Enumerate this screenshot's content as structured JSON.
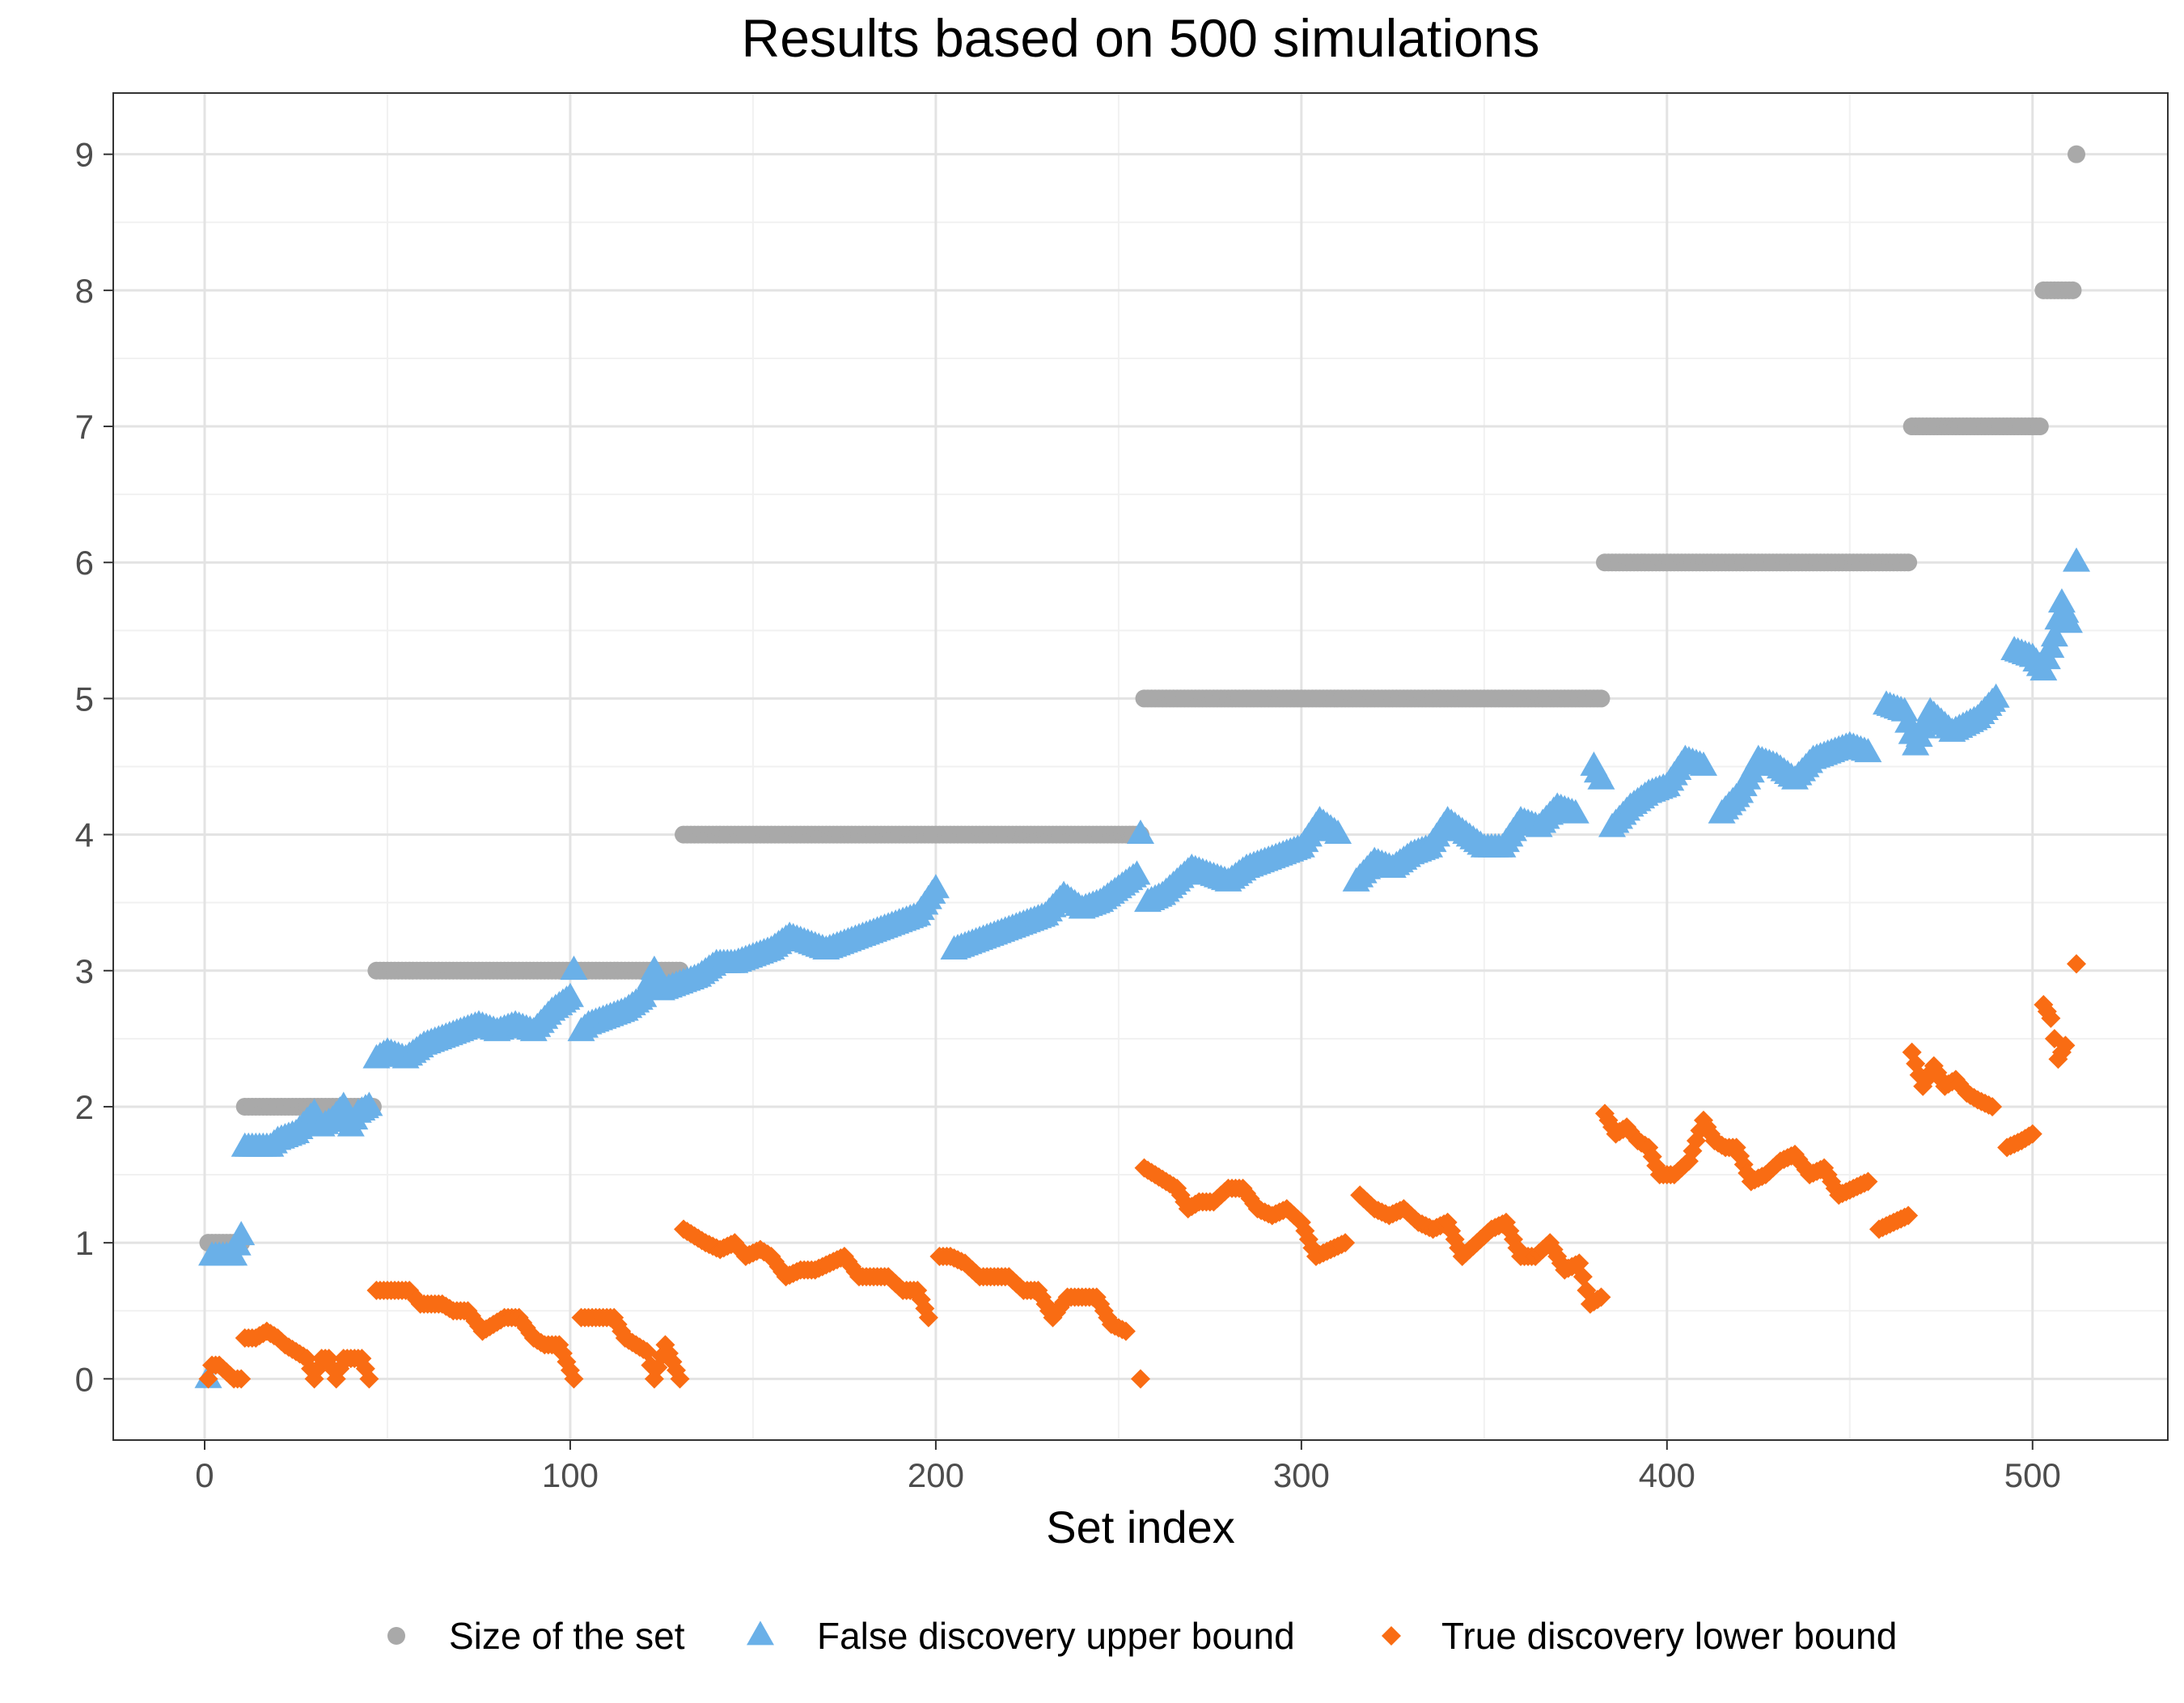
{
  "chart_data": {
    "type": "scatter",
    "title": "Results based on 500 simulations",
    "xlabel": "Set index",
    "ylabel": "",
    "xlim": [
      -25,
      537
    ],
    "ylim": [
      -0.45,
      9.45
    ],
    "x_ticks": [
      0,
      100,
      200,
      300,
      400,
      500
    ],
    "x_tick_labels": [
      "0",
      "100",
      "200",
      "300",
      "400",
      "500"
    ],
    "y_ticks": [
      0,
      1,
      2,
      3,
      4,
      5,
      6,
      7,
      8,
      9
    ],
    "y_tick_labels": [
      "0",
      "1",
      "2",
      "3",
      "4",
      "5",
      "6",
      "7",
      "8",
      "9"
    ],
    "grid": true,
    "legend_position": "bottom",
    "n_points": 512,
    "series": [
      {
        "name": "Size of the set",
        "marker": "circle",
        "color": "#a9a9a9",
        "segments": [
          {
            "x_from": 1,
            "x_to": 10,
            "value": 1
          },
          {
            "x_from": 11,
            "x_to": 46,
            "value": 2
          },
          {
            "x_from": 47,
            "x_to": 130,
            "value": 3
          },
          {
            "x_from": 131,
            "x_to": 256,
            "value": 4
          },
          {
            "x_from": 257,
            "x_to": 382,
            "value": 5
          },
          {
            "x_from": 383,
            "x_to": 466,
            "value": 6
          },
          {
            "x_from": 467,
            "x_to": 502,
            "value": 7
          },
          {
            "x_from": 503,
            "x_to": 511,
            "value": 8
          },
          {
            "x_from": 512,
            "x_to": 512,
            "value": 9
          }
        ]
      },
      {
        "name": "False discovery upper bound",
        "marker": "triangle",
        "color": "#6ab0e8",
        "x": [
          1,
          2,
          8,
          10,
          11,
          15,
          18,
          20,
          25,
          30,
          32,
          35,
          38,
          40,
          42,
          45,
          47,
          50,
          55,
          60,
          65,
          70,
          75,
          80,
          85,
          90,
          95,
          100,
          101,
          103,
          105,
          110,
          115,
          120,
          123,
          125,
          130,
          135,
          140,
          145,
          150,
          155,
          160,
          165,
          170,
          175,
          180,
          185,
          190,
          195,
          200,
          205,
          210,
          215,
          220,
          225,
          230,
          235,
          240,
          245,
          250,
          255,
          256,
          258,
          262,
          266,
          270,
          275,
          280,
          285,
          290,
          295,
          300,
          305,
          310,
          315,
          320,
          325,
          330,
          335,
          340,
          345,
          350,
          355,
          360,
          365,
          370,
          375,
          380,
          382,
          385,
          390,
          395,
          400,
          405,
          410,
          415,
          420,
          425,
          430,
          435,
          440,
          445,
          450,
          455,
          460,
          465,
          468,
          472,
          478,
          485,
          490,
          495,
          500,
          503,
          506,
          508,
          510,
          512
        ],
        "values": [
          0.0,
          0.9,
          0.9,
          1.05,
          1.7,
          1.7,
          1.7,
          1.75,
          1.8,
          1.95,
          1.85,
          1.9,
          2.0,
          1.85,
          1.95,
          2.0,
          2.35,
          2.4,
          2.35,
          2.45,
          2.5,
          2.55,
          2.6,
          2.55,
          2.6,
          2.55,
          2.7,
          2.8,
          3.0,
          2.55,
          2.6,
          2.65,
          2.7,
          2.8,
          3.0,
          2.85,
          2.9,
          2.95,
          3.05,
          3.05,
          3.1,
          3.15,
          3.25,
          3.2,
          3.15,
          3.2,
          3.25,
          3.3,
          3.35,
          3.4,
          3.6,
          3.15,
          3.2,
          3.25,
          3.3,
          3.35,
          3.4,
          3.55,
          3.45,
          3.5,
          3.6,
          3.7,
          4.0,
          3.5,
          3.55,
          3.65,
          3.75,
          3.7,
          3.65,
          3.75,
          3.8,
          3.85,
          3.9,
          4.1,
          4.0,
          3.65,
          3.8,
          3.75,
          3.85,
          3.9,
          4.1,
          4.0,
          3.9,
          3.9,
          4.1,
          4.05,
          4.2,
          4.15,
          4.5,
          4.4,
          4.05,
          4.2,
          4.3,
          4.35,
          4.55,
          4.5,
          4.15,
          4.3,
          4.55,
          4.5,
          4.4,
          4.55,
          4.6,
          4.65,
          4.6,
          4.95,
          4.9,
          4.65,
          4.9,
          4.75,
          4.85,
          5.0,
          5.35,
          5.3,
          5.2,
          5.45,
          5.7,
          5.55,
          6.0
        ]
      },
      {
        "name": "True discovery lower bound",
        "marker": "diamond",
        "color": "#f96c13",
        "x": [
          1,
          2,
          4,
          6,
          8,
          10,
          11,
          14,
          17,
          20,
          22,
          25,
          28,
          30,
          32,
          34,
          36,
          38,
          41,
          43,
          45,
          47,
          50,
          53,
          56,
          59,
          62,
          65,
          68,
          72,
          76,
          79,
          82,
          86,
          90,
          93,
          97,
          101,
          103,
          106,
          109,
          112,
          115,
          118,
          121,
          123,
          126,
          130,
          131,
          134,
          137,
          141,
          145,
          148,
          152,
          155,
          159,
          163,
          167,
          171,
          175,
          179,
          183,
          187,
          191,
          195,
          198,
          201,
          204,
          208,
          212,
          216,
          220,
          224,
          228,
          232,
          236,
          240,
          244,
          248,
          252,
          256,
          257,
          260,
          263,
          266,
          269,
          272,
          276,
          280,
          284,
          288,
          292,
          296,
          300,
          304,
          308,
          312,
          316,
          320,
          324,
          328,
          332,
          336,
          340,
          344,
          348,
          352,
          356,
          360,
          364,
          368,
          372,
          376,
          379,
          382,
          383,
          386,
          389,
          392,
          395,
          398,
          402,
          406,
          410,
          413,
          416,
          419,
          423,
          427,
          431,
          435,
          439,
          443,
          447,
          451,
          455,
          458,
          462,
          466,
          467,
          470,
          473,
          476,
          479,
          482,
          485,
          489,
          493,
          497,
          500,
          503,
          505,
          507,
          509,
          512
        ],
        "values": [
          0.0,
          0.1,
          0.1,
          0.05,
          0.0,
          0.0,
          0.3,
          0.3,
          0.35,
          0.3,
          0.25,
          0.2,
          0.15,
          0.0,
          0.15,
          0.15,
          0.0,
          0.15,
          0.15,
          0.15,
          0.0,
          0.65,
          0.65,
          0.65,
          0.65,
          0.55,
          0.55,
          0.55,
          0.5,
          0.5,
          0.35,
          0.4,
          0.45,
          0.45,
          0.3,
          0.25,
          0.25,
          0.0,
          0.45,
          0.45,
          0.45,
          0.45,
          0.3,
          0.25,
          0.2,
          0.0,
          0.25,
          0.0,
          1.1,
          1.05,
          1.0,
          0.95,
          1.0,
          0.9,
          0.95,
          0.9,
          0.75,
          0.8,
          0.8,
          0.85,
          0.9,
          0.75,
          0.75,
          0.75,
          0.65,
          0.65,
          0.45,
          0.9,
          0.9,
          0.85,
          0.75,
          0.75,
          0.75,
          0.65,
          0.65,
          0.45,
          0.6,
          0.6,
          0.6,
          0.4,
          0.35,
          0.0,
          1.55,
          1.5,
          1.45,
          1.4,
          1.25,
          1.3,
          1.3,
          1.4,
          1.4,
          1.25,
          1.2,
          1.25,
          1.15,
          0.9,
          0.95,
          1.0,
          1.35,
          1.25,
          1.2,
          1.25,
          1.15,
          1.1,
          1.15,
          0.9,
          1.0,
          1.1,
          1.15,
          0.9,
          0.9,
          1.0,
          0.8,
          0.85,
          0.55,
          0.6,
          1.95,
          1.8,
          1.85,
          1.75,
          1.7,
          1.5,
          1.5,
          1.6,
          1.9,
          1.75,
          1.7,
          1.7,
          1.45,
          1.5,
          1.6,
          1.65,
          1.5,
          1.55,
          1.35,
          1.4,
          1.45,
          1.1,
          1.15,
          1.2,
          2.4,
          2.15,
          2.3,
          2.15,
          2.2,
          2.1,
          2.05,
          2.0,
          1.7,
          1.75,
          1.8,
          2.75,
          2.65,
          2.35,
          2.45,
          3.05
        ]
      }
    ]
  }
}
